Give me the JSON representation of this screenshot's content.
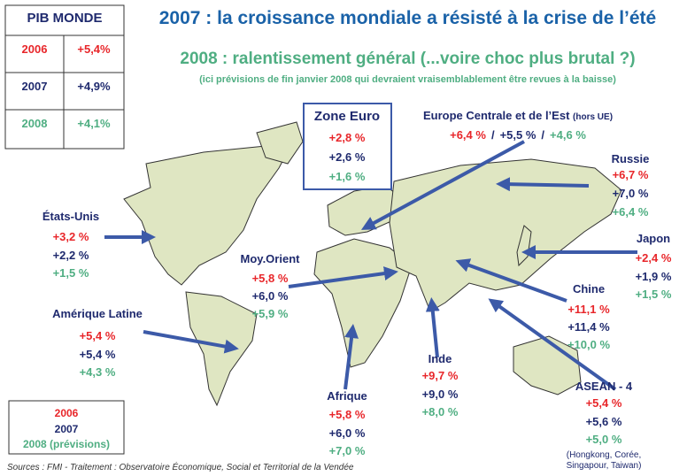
{
  "pib_table": {
    "title": "PIB MONDE",
    "rows": [
      [
        "2006",
        "+5,4%"
      ],
      [
        "2007",
        "+4,9%"
      ],
      [
        "2008",
        "+4,1%"
      ]
    ]
  },
  "title": "2007 : la croissance mondiale a résisté à la crise de l’été",
  "subtitle": "2008 : ralentissement général  (...voire choc plus brutal ?)",
  "note": "(ici prévisions de fin janvier 2008 qui devraient vraisemblablement être revues à la baisse)",
  "regions": [
    {
      "name": "Zone Euro",
      "values": [
        "+2,8 %",
        "+2,6 %",
        "+1,6 %"
      ]
    },
    {
      "name": "Europe Centrale et de l’Est",
      "qualifier": "(hors UE)",
      "values": [
        "+6,4 %",
        "+5,5 %",
        "+4,6 %"
      ],
      "separator": "/"
    },
    {
      "name": "Russie",
      "values": [
        "+6,7 %",
        "+7,0 %",
        "+6,4 %"
      ]
    },
    {
      "name": "États-Unis",
      "values": [
        "+3,2 %",
        "+2,2 %",
        "+1,5 %"
      ]
    },
    {
      "name": "Japon",
      "values": [
        "+2,4 %",
        "+1,9 %",
        "+1,5 %"
      ]
    },
    {
      "name": "Moy.Orient",
      "values": [
        "+5,8 %",
        "+6,0 %",
        "+5,9 %"
      ]
    },
    {
      "name": "Chine",
      "values": [
        "+11,1 %",
        "+11,4 %",
        "+10,0 %"
      ]
    },
    {
      "name": "Amérique Latine",
      "values": [
        "+5,4 %",
        "+5,4 %",
        "+4,3 %"
      ]
    },
    {
      "name": "Inde",
      "values": [
        "+9,7 %",
        "+9,0 %",
        "+8,0 %"
      ]
    },
    {
      "name": "Afrique",
      "values": [
        "+5,8 %",
        "+6,0 %",
        "+7,0 %"
      ]
    },
    {
      "name": "ASEAN - 4",
      "values": [
        "+5,4 %",
        "+5,6 %",
        "+5,0 %"
      ],
      "note_lines": [
        "(Hongkong, Corée,",
        "Singapour, Taiwan)"
      ]
    }
  ],
  "legend": [
    "2006",
    "2007",
    "2008 (prévisions)"
  ],
  "source": "Sources : FMI  -  Traitement : Observatoire Économique, Social et Territorial de la Vendée"
}
